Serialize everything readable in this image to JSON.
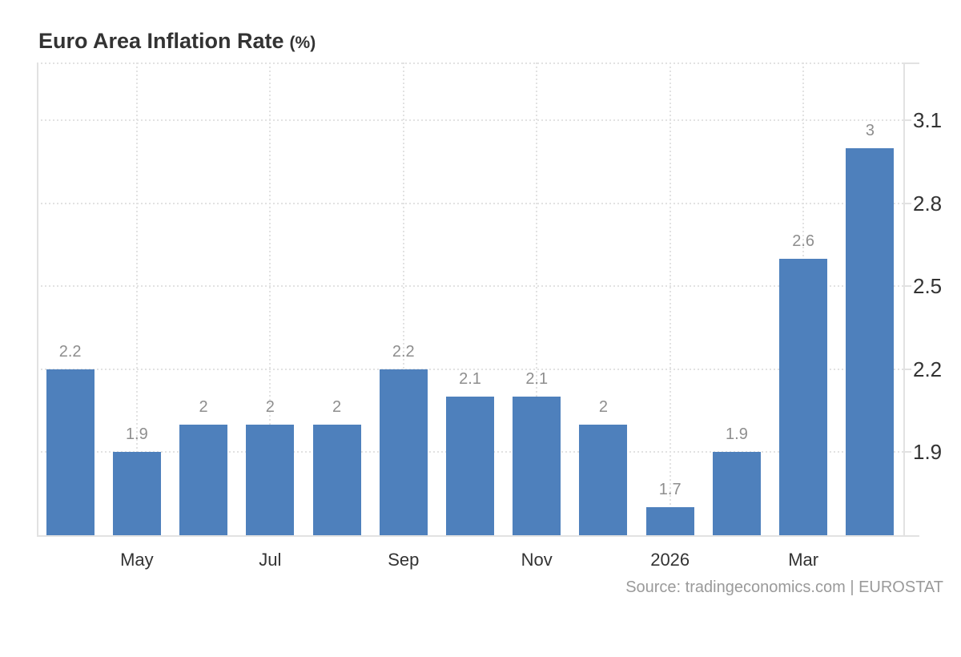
{
  "header": {
    "title": "Euro Area Inflation Rate",
    "unit": "(%)"
  },
  "source": {
    "text": "Source: tradingeconomics.com | EUROSTAT"
  },
  "colors": {
    "bar": "#4e80bc",
    "grid": "#e2e2e2",
    "axis": "#e2e2e2",
    "value_label": "#8e8e8e",
    "tick_label": "#333333",
    "title": "#333333",
    "source_text": "#9a9a9a",
    "background": "#ffffff"
  },
  "chart_data": {
    "type": "bar",
    "title": "Euro Area Inflation Rate (%)",
    "values": [
      2.2,
      1.9,
      2,
      2,
      2,
      2.2,
      2.1,
      2.1,
      2,
      1.7,
      1.9,
      2.6,
      3
    ],
    "value_labels": [
      "2.2",
      "1.9",
      "2",
      "2",
      "2",
      "2.2",
      "2.1",
      "2.1",
      "2",
      "1.7",
      "1.9",
      "2.6",
      "3"
    ],
    "x_ticks": [
      {
        "bar_index": 1,
        "label": "May"
      },
      {
        "bar_index": 3,
        "label": "Jul"
      },
      {
        "bar_index": 5,
        "label": "Sep"
      },
      {
        "bar_index": 7,
        "label": "Nov"
      },
      {
        "bar_index": 9,
        "label": "2026"
      },
      {
        "bar_index": 11,
        "label": "Mar"
      }
    ],
    "y_ticks": [
      "1.9",
      "2.2",
      "2.5",
      "2.8",
      "3.1"
    ],
    "ylim": [
      1.6,
      3.31
    ],
    "grid_style": "dotted",
    "y_axis_position": "right",
    "legend": "none"
  }
}
